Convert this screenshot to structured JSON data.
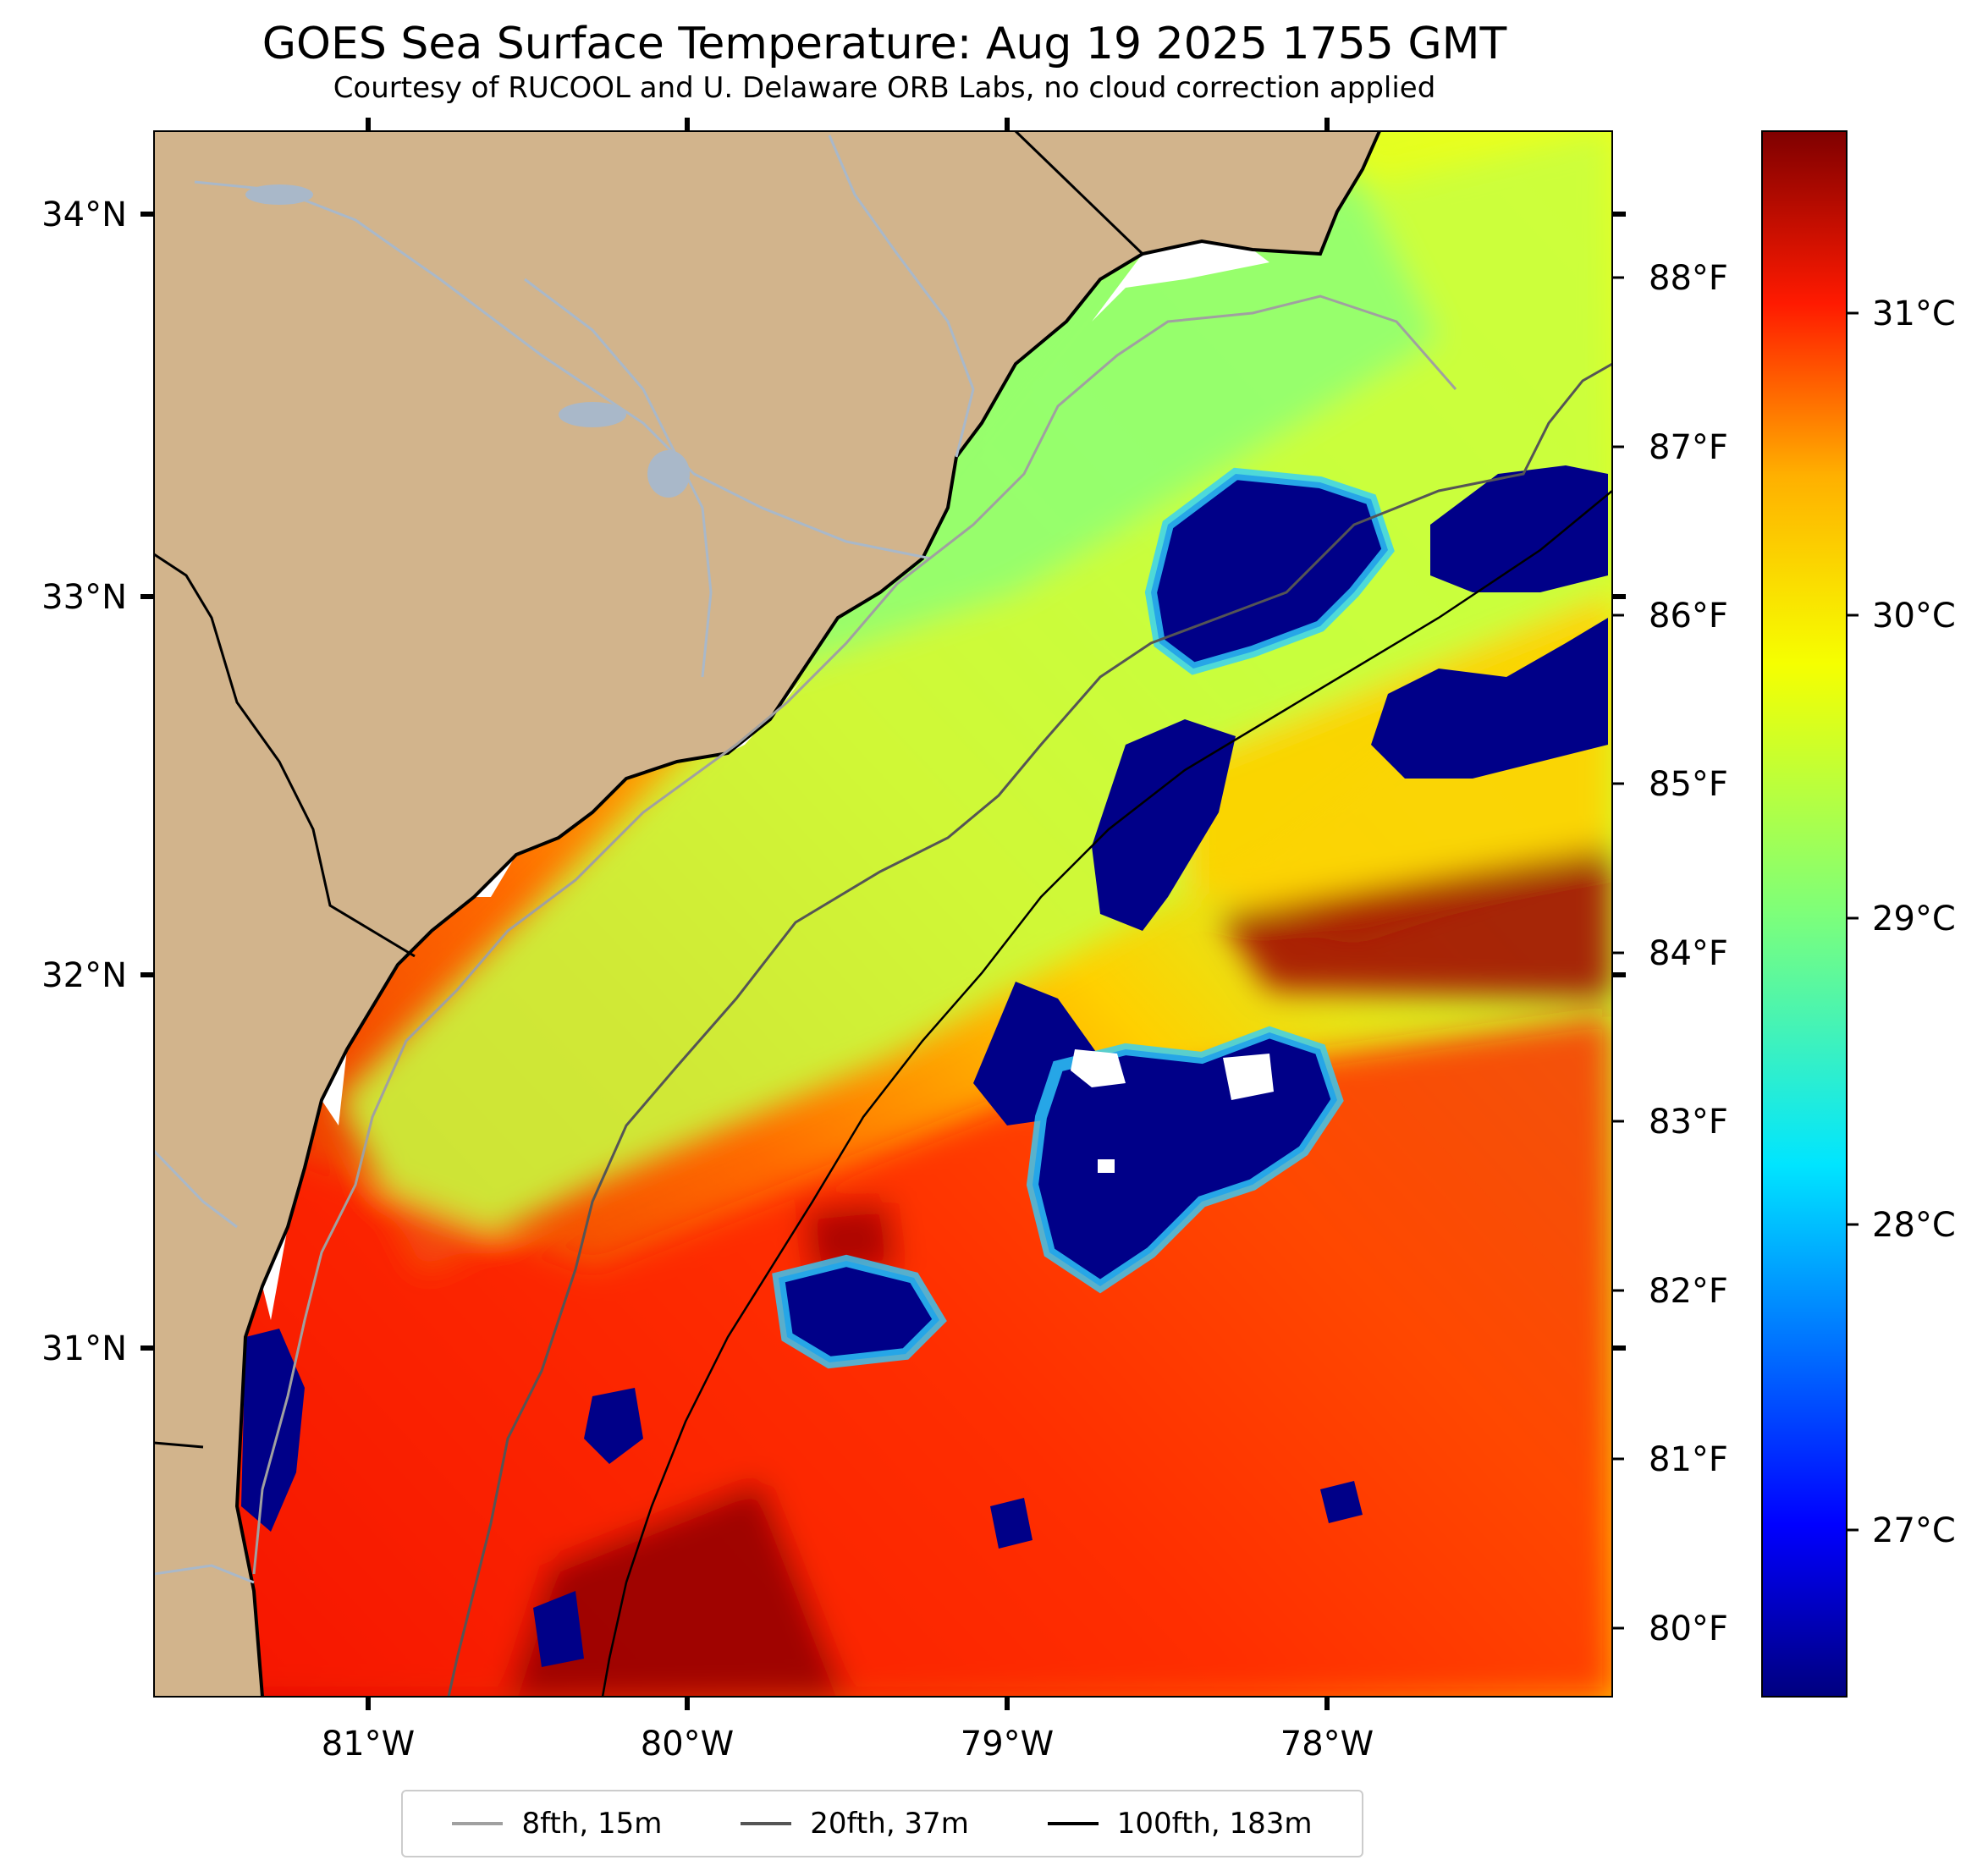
{
  "header": {
    "title": "GOES Sea Surface Temperature: Aug 19 2025 1755 GMT",
    "subtitle": "Courtesy of RUCOOL and U. Delaware ORB Labs, no cloud correction applied"
  },
  "map": {
    "region": "South Carolina / Georgia coast, South Atlantic Bight",
    "lat_range": [
      30.1,
      34.2
    ],
    "lon_range": [
      -81.67,
      -77.1
    ],
    "lat_labels": [
      "34°N",
      "33°N",
      "32°N",
      "31°N"
    ],
    "lon_labels": [
      "81°W",
      "80°W",
      "79°W",
      "78°W"
    ],
    "colors": {
      "land": "#d2b48c",
      "rivers": "#a9b8c9",
      "coastline": "#000000",
      "no_data": "#ffffff"
    },
    "colormap": "jet"
  },
  "colorbar": {
    "celsius_labels": [
      "31°C",
      "30°C",
      "29°C",
      "28°C",
      "27°C"
    ],
    "fahrenheit_labels": [
      "88°F",
      "87°F",
      "86°F",
      "85°F",
      "84°F",
      "83°F",
      "82°F",
      "81°F",
      "80°F"
    ],
    "min_c": 26.5,
    "max_c": 31.7
  },
  "legend": {
    "items": [
      {
        "label": "8fth, 15m",
        "color": "#a0a0a0"
      },
      {
        "label": "20fth, 37m",
        "color": "#555555"
      },
      {
        "label": "100fth, 183m",
        "color": "#000000"
      }
    ]
  }
}
